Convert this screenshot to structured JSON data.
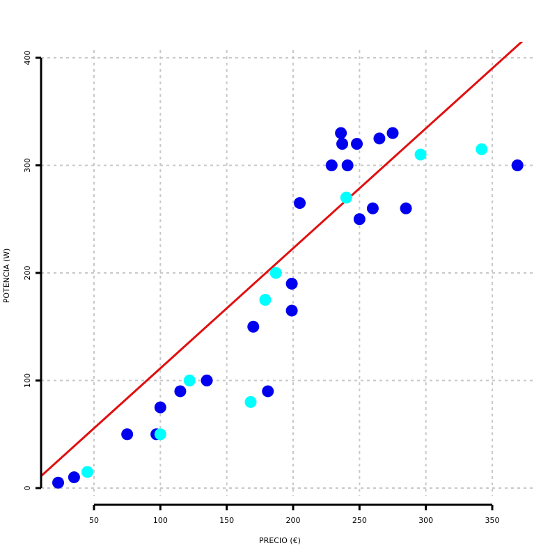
{
  "chart_data": {
    "type": "scatter",
    "title": "",
    "xlabel": "PRECIO (€)",
    "ylabel": "POTENCIA (W)",
    "xlim": [
      10,
      380
    ],
    "ylim": [
      -15,
      415
    ],
    "x_ticks": [
      50,
      100,
      150,
      200,
      250,
      300,
      350
    ],
    "y_ticks": [
      0,
      100,
      200,
      300,
      400
    ],
    "grid": true,
    "colors": {
      "blue": "#0000ee",
      "cyan": "#00ffff",
      "trend": "#e01010",
      "grid": "#c8c8c8"
    },
    "series": [
      {
        "color": "#0000ee",
        "points": [
          [
            23,
            5
          ],
          [
            35,
            10
          ],
          [
            75,
            50
          ],
          [
            97,
            50
          ],
          [
            100,
            75
          ],
          [
            115,
            90
          ],
          [
            135,
            100
          ],
          [
            170,
            150
          ],
          [
            181,
            90
          ],
          [
            199,
            165
          ],
          [
            199,
            190
          ],
          [
            205,
            265
          ],
          [
            229,
            300
          ],
          [
            236,
            330
          ],
          [
            237,
            320
          ],
          [
            241,
            300
          ],
          [
            248,
            320
          ],
          [
            250,
            250
          ],
          [
            260,
            260
          ],
          [
            265,
            325
          ],
          [
            275,
            330
          ],
          [
            285,
            260
          ],
          [
            369,
            300
          ]
        ]
      },
      {
        "color": "#00ffff",
        "points": [
          [
            45,
            15
          ],
          [
            100,
            50
          ],
          [
            122,
            100
          ],
          [
            168,
            80
          ],
          [
            179,
            175
          ],
          [
            187,
            200
          ],
          [
            240,
            270
          ],
          [
            296,
            310
          ],
          [
            342,
            315
          ]
        ]
      }
    ],
    "trend_line": {
      "x": [
        10,
        375
      ],
      "y": [
        11,
        418
      ],
      "color": "#e01010"
    }
  }
}
